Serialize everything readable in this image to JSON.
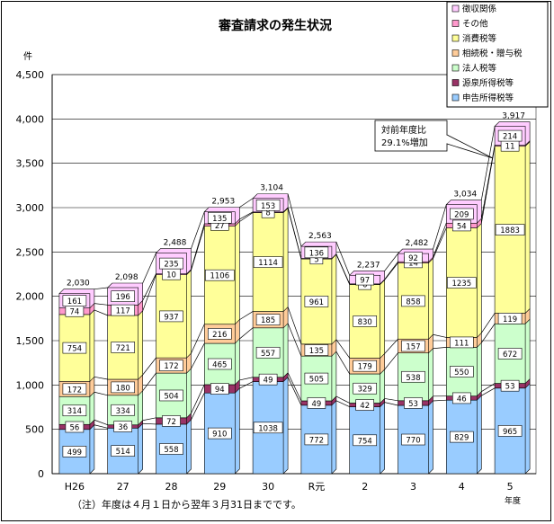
{
  "chart_data": {
    "type": "bar",
    "stacked": true,
    "title": "審査請求の発生状況",
    "ylabel": "件",
    "xlabel": "年度",
    "ylim": [
      0,
      4500
    ],
    "yticks": [
      "0",
      "500",
      "1,000",
      "1,500",
      "2,000",
      "2,500",
      "3,000",
      "3,500",
      "4,000",
      "4,500"
    ],
    "grid": "horizontal",
    "legend_position": "top-right",
    "categories": [
      "H26",
      "27",
      "28",
      "29",
      "30",
      "R元",
      "2",
      "3",
      "4",
      "5"
    ],
    "series": [
      {
        "name": "申告所得税等",
        "color": "#99CCFF",
        "values": [
          499,
          514,
          558,
          910,
          1038,
          772,
          754,
          770,
          829,
          965
        ]
      },
      {
        "name": "源泉所得税等",
        "color": "#993366",
        "values": [
          56,
          36,
          72,
          94,
          49,
          49,
          42,
          53,
          46,
          53
        ]
      },
      {
        "name": "法人税等",
        "color": "#CCFFCC",
        "values": [
          314,
          334,
          504,
          465,
          557,
          505,
          329,
          538,
          550,
          672
        ]
      },
      {
        "name": "相続税・贈与税",
        "color": "#FFCC99",
        "values": [
          172,
          180,
          172,
          216,
          185,
          135,
          179,
          157,
          111,
          119
        ]
      },
      {
        "name": "消費税等",
        "color": "#FFFF99",
        "values": [
          754,
          721,
          937,
          1106,
          1114,
          961,
          830,
          858,
          1235,
          1883
        ]
      },
      {
        "name": "その他",
        "color": "#FF99CC",
        "values": [
          74,
          117,
          10,
          27,
          8,
          5,
          6,
          14,
          54,
          11
        ]
      },
      {
        "name": "徴収関係",
        "color": "#FFCCFF",
        "values": [
          161,
          196,
          235,
          135,
          153,
          136,
          97,
          92,
          209,
          214
        ]
      }
    ],
    "totals": [
      "2,030",
      "2,098",
      "2,488",
      "2,953",
      "3,104",
      "2,563",
      "2,237",
      "2,482",
      "3,034",
      "3,917"
    ],
    "annotation": {
      "lines": [
        "対前年度比",
        "29.1%増加"
      ]
    },
    "footnote": "（注）年度は４月１日から翌年３月31日までです。"
  }
}
